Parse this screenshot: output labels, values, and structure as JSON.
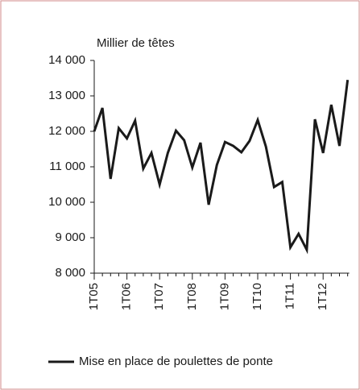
{
  "chart_data": {
    "type": "line",
    "y_axis_label": "Millier de têtes",
    "categories": [
      "1T05",
      null,
      null,
      null,
      "1T06",
      null,
      null,
      null,
      "1T07",
      null,
      null,
      null,
      "1T08",
      null,
      null,
      null,
      "1T09",
      null,
      null,
      null,
      "1T10",
      null,
      null,
      null,
      "1T11",
      null,
      null,
      null,
      "1T12",
      null,
      null,
      null
    ],
    "series": [
      {
        "name": "Mise en place de poulettes de ponte",
        "color": "#1a1a1a",
        "values": [
          12000,
          12660,
          10660,
          12090,
          11800,
          12300,
          10950,
          11390,
          10500,
          11390,
          12020,
          11750,
          10980,
          11680,
          9930,
          11050,
          11700,
          11590,
          11410,
          11730,
          12320,
          11570,
          10430,
          10570,
          8730,
          9110,
          8660,
          12340,
          11390,
          12750,
          11590,
          13450
        ]
      }
    ],
    "ylim": [
      8000,
      14000
    ],
    "yticks": [
      {
        "value": 8000,
        "label": "8 000"
      },
      {
        "value": 9000,
        "label": "9 000"
      },
      {
        "value": 10000,
        "label": "10 000"
      },
      {
        "value": 11000,
        "label": "11 000"
      },
      {
        "value": 12000,
        "label": "12 000"
      },
      {
        "value": 13000,
        "label": "13 000"
      },
      {
        "value": 14000,
        "label": "14 000"
      }
    ],
    "legend": "bottom"
  }
}
